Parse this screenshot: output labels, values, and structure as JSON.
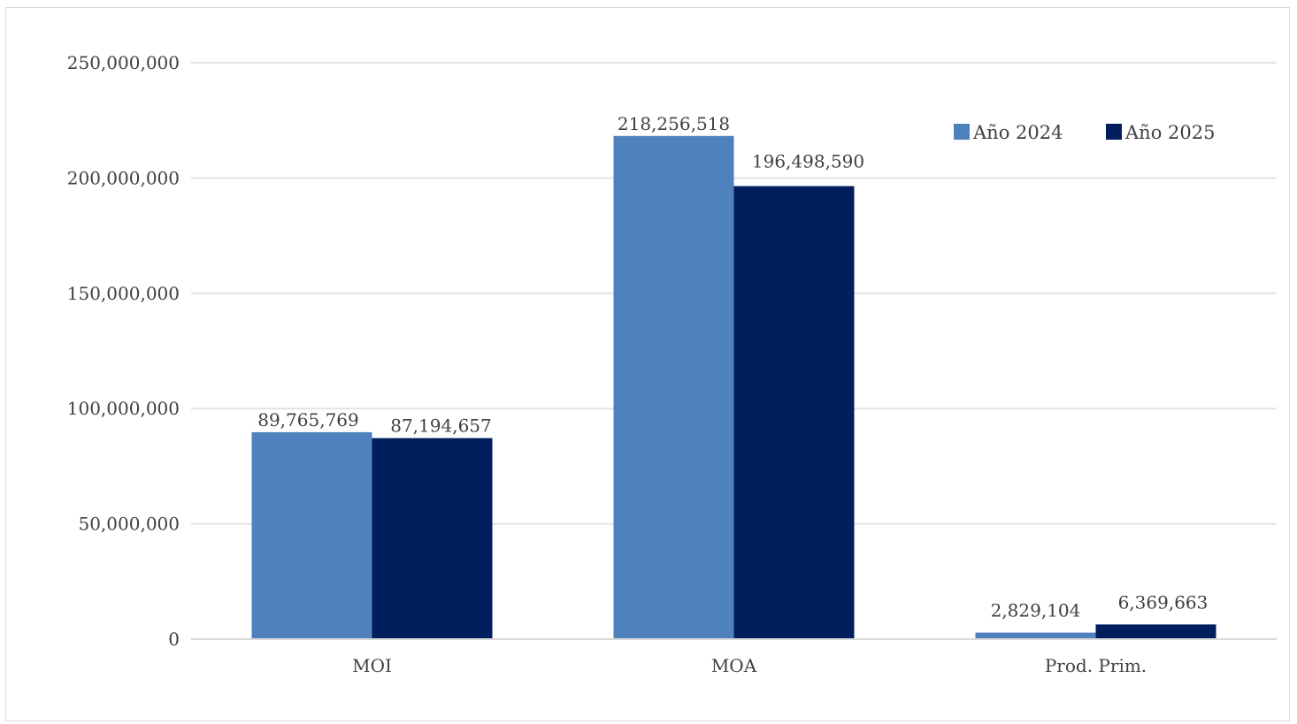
{
  "chart_data": {
    "type": "bar",
    "title": "",
    "xlabel": "",
    "ylabel": "",
    "categories": [
      "MOI",
      "MOA",
      "Prod. Prim."
    ],
    "series": [
      {
        "name": "Año 2024",
        "color": "#4f81bd",
        "values": [
          89765769,
          218256518,
          2829104
        ],
        "labels": [
          "89,765,769",
          "218,256,518",
          "2,829,104"
        ]
      },
      {
        "name": "Año 2025",
        "color": "#001f5c",
        "values": [
          87194657,
          196498590,
          6369663
        ],
        "labels": [
          "87,194,657",
          "196,498,590",
          "6,369,663"
        ]
      }
    ],
    "ylim": [
      0,
      250000000
    ],
    "yticks": [
      0,
      50000000,
      100000000,
      150000000,
      200000000,
      250000000
    ],
    "ytick_labels": [
      "0",
      "50,000,000",
      "100,000,000",
      "150,000,000",
      "200,000,000",
      "250,000,000"
    ],
    "grid": true,
    "gridline_color": "#e3e3e3",
    "legend_position": "top-right"
  }
}
